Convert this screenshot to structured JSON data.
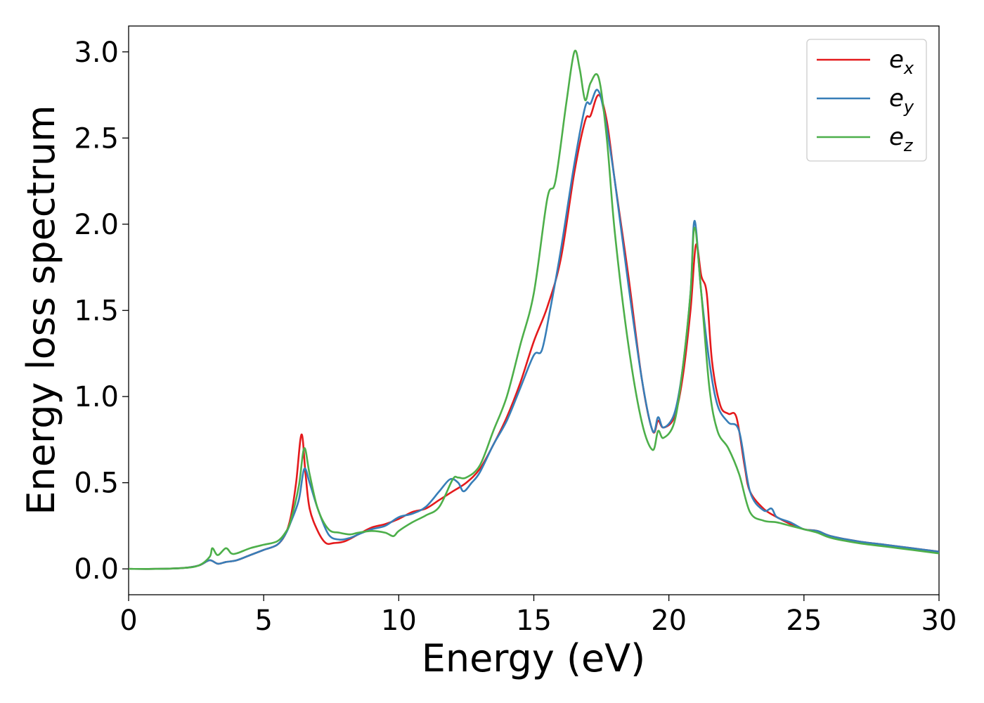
{
  "chart_data": {
    "type": "line",
    "title": "",
    "xlabel": "Energy (eV)",
    "ylabel": "Energy loss spectrum",
    "xlim": [
      0,
      30
    ],
    "ylim": [
      -0.15,
      3.15
    ],
    "xticks": [
      0,
      5,
      10,
      15,
      20,
      25,
      30
    ],
    "xtick_labels": [
      "0",
      "5",
      "10",
      "15",
      "20",
      "25",
      "30"
    ],
    "yticks": [
      0.0,
      0.5,
      1.0,
      1.5,
      2.0,
      2.5,
      3.0
    ],
    "ytick_labels": [
      "0.0",
      "0.5",
      "1.0",
      "1.5",
      "2.0",
      "2.5",
      "3.0"
    ],
    "grid": false,
    "legend_position": "top-right",
    "series": [
      {
        "name": "e_x",
        "legend_base": "e",
        "legend_sub": "x",
        "color": "#e41a1c",
        "points": [
          [
            0,
            0
          ],
          [
            1,
            0
          ],
          [
            2,
            0.005
          ],
          [
            2.6,
            0.02
          ],
          [
            3.0,
            0.05
          ],
          [
            3.3,
            0.03
          ],
          [
            3.6,
            0.04
          ],
          [
            4.0,
            0.05
          ],
          [
            4.5,
            0.08
          ],
          [
            5.0,
            0.11
          ],
          [
            5.5,
            0.14
          ],
          [
            5.8,
            0.2
          ],
          [
            6.0,
            0.3
          ],
          [
            6.2,
            0.5
          ],
          [
            6.4,
            0.78
          ],
          [
            6.55,
            0.55
          ],
          [
            6.7,
            0.35
          ],
          [
            7.0,
            0.22
          ],
          [
            7.3,
            0.15
          ],
          [
            7.6,
            0.15
          ],
          [
            8.0,
            0.16
          ],
          [
            8.5,
            0.2
          ],
          [
            9.0,
            0.24
          ],
          [
            9.5,
            0.26
          ],
          [
            10.0,
            0.29
          ],
          [
            10.5,
            0.33
          ],
          [
            11.0,
            0.35
          ],
          [
            11.5,
            0.4
          ],
          [
            12.0,
            0.45
          ],
          [
            12.5,
            0.5
          ],
          [
            13.0,
            0.58
          ],
          [
            13.5,
            0.72
          ],
          [
            14.0,
            0.88
          ],
          [
            14.5,
            1.08
          ],
          [
            15.0,
            1.32
          ],
          [
            15.5,
            1.52
          ],
          [
            16.0,
            1.8
          ],
          [
            16.5,
            2.3
          ],
          [
            16.9,
            2.6
          ],
          [
            17.1,
            2.63
          ],
          [
            17.4,
            2.75
          ],
          [
            17.7,
            2.6
          ],
          [
            18.0,
            2.25
          ],
          [
            18.5,
            1.7
          ],
          [
            19.0,
            1.1
          ],
          [
            19.4,
            0.8
          ],
          [
            19.6,
            0.86
          ],
          [
            19.8,
            0.82
          ],
          [
            20.2,
            0.88
          ],
          [
            20.5,
            1.1
          ],
          [
            20.8,
            1.5
          ],
          [
            21.0,
            1.88
          ],
          [
            21.2,
            1.7
          ],
          [
            21.4,
            1.6
          ],
          [
            21.6,
            1.2
          ],
          [
            21.9,
            0.95
          ],
          [
            22.2,
            0.9
          ],
          [
            22.5,
            0.88
          ],
          [
            22.8,
            0.6
          ],
          [
            23.0,
            0.45
          ],
          [
            23.5,
            0.35
          ],
          [
            24.0,
            0.3
          ],
          [
            24.5,
            0.26
          ],
          [
            25.0,
            0.23
          ],
          [
            25.5,
            0.22
          ],
          [
            26.0,
            0.19
          ],
          [
            27.0,
            0.16
          ],
          [
            28.0,
            0.14
          ],
          [
            29.0,
            0.12
          ],
          [
            30.0,
            0.1
          ]
        ]
      },
      {
        "name": "e_y",
        "legend_base": "e",
        "legend_sub": "y",
        "color": "#377eb8",
        "points": [
          [
            0,
            0
          ],
          [
            1,
            0
          ],
          [
            2,
            0.005
          ],
          [
            2.6,
            0.02
          ],
          [
            3.0,
            0.05
          ],
          [
            3.3,
            0.03
          ],
          [
            3.6,
            0.04
          ],
          [
            4.0,
            0.05
          ],
          [
            4.5,
            0.08
          ],
          [
            5.0,
            0.11
          ],
          [
            5.5,
            0.14
          ],
          [
            5.8,
            0.2
          ],
          [
            6.0,
            0.27
          ],
          [
            6.3,
            0.4
          ],
          [
            6.5,
            0.58
          ],
          [
            6.7,
            0.5
          ],
          [
            7.0,
            0.35
          ],
          [
            7.4,
            0.2
          ],
          [
            7.8,
            0.17
          ],
          [
            8.2,
            0.18
          ],
          [
            8.5,
            0.2
          ],
          [
            9.0,
            0.23
          ],
          [
            9.5,
            0.25
          ],
          [
            10.0,
            0.3
          ],
          [
            10.5,
            0.32
          ],
          [
            11.0,
            0.36
          ],
          [
            11.5,
            0.45
          ],
          [
            11.9,
            0.52
          ],
          [
            12.2,
            0.5
          ],
          [
            12.4,
            0.45
          ],
          [
            12.7,
            0.5
          ],
          [
            13.0,
            0.56
          ],
          [
            13.5,
            0.72
          ],
          [
            14.0,
            0.86
          ],
          [
            14.5,
            1.05
          ],
          [
            15.0,
            1.24
          ],
          [
            15.3,
            1.27
          ],
          [
            15.6,
            1.5
          ],
          [
            16.0,
            1.85
          ],
          [
            16.5,
            2.35
          ],
          [
            16.9,
            2.68
          ],
          [
            17.1,
            2.7
          ],
          [
            17.35,
            2.78
          ],
          [
            17.6,
            2.65
          ],
          [
            18.0,
            2.25
          ],
          [
            18.5,
            1.65
          ],
          [
            19.0,
            1.1
          ],
          [
            19.4,
            0.8
          ],
          [
            19.6,
            0.88
          ],
          [
            19.8,
            0.82
          ],
          [
            20.2,
            0.9
          ],
          [
            20.5,
            1.15
          ],
          [
            20.8,
            1.6
          ],
          [
            20.95,
            2.02
          ],
          [
            21.2,
            1.6
          ],
          [
            21.5,
            1.2
          ],
          [
            21.8,
            0.95
          ],
          [
            22.2,
            0.85
          ],
          [
            22.6,
            0.8
          ],
          [
            23.0,
            0.45
          ],
          [
            23.5,
            0.34
          ],
          [
            23.8,
            0.35
          ],
          [
            24.0,
            0.3
          ],
          [
            24.5,
            0.27
          ],
          [
            25.0,
            0.23
          ],
          [
            25.5,
            0.22
          ],
          [
            26.0,
            0.19
          ],
          [
            27.0,
            0.16
          ],
          [
            28.0,
            0.14
          ],
          [
            29.0,
            0.12
          ],
          [
            30.0,
            0.1
          ]
        ]
      },
      {
        "name": "e_z",
        "legend_base": "e",
        "legend_sub": "z",
        "color": "#4daf4a",
        "points": [
          [
            0,
            0
          ],
          [
            1,
            0
          ],
          [
            2,
            0.005
          ],
          [
            2.6,
            0.02
          ],
          [
            3.0,
            0.07
          ],
          [
            3.1,
            0.12
          ],
          [
            3.3,
            0.08
          ],
          [
            3.6,
            0.12
          ],
          [
            3.8,
            0.09
          ],
          [
            4.0,
            0.09
          ],
          [
            4.5,
            0.12
          ],
          [
            5.0,
            0.14
          ],
          [
            5.5,
            0.16
          ],
          [
            5.8,
            0.21
          ],
          [
            6.0,
            0.28
          ],
          [
            6.3,
            0.48
          ],
          [
            6.5,
            0.7
          ],
          [
            6.7,
            0.55
          ],
          [
            7.0,
            0.35
          ],
          [
            7.4,
            0.23
          ],
          [
            7.8,
            0.21
          ],
          [
            8.2,
            0.2
          ],
          [
            8.5,
            0.21
          ],
          [
            9.0,
            0.22
          ],
          [
            9.5,
            0.21
          ],
          [
            9.8,
            0.19
          ],
          [
            10.0,
            0.22
          ],
          [
            10.5,
            0.27
          ],
          [
            11.0,
            0.31
          ],
          [
            11.5,
            0.36
          ],
          [
            12.0,
            0.52
          ],
          [
            12.2,
            0.53
          ],
          [
            12.5,
            0.53
          ],
          [
            13.0,
            0.6
          ],
          [
            13.5,
            0.8
          ],
          [
            14.0,
            1.0
          ],
          [
            14.5,
            1.3
          ],
          [
            15.0,
            1.6
          ],
          [
            15.5,
            2.15
          ],
          [
            15.8,
            2.25
          ],
          [
            16.2,
            2.7
          ],
          [
            16.5,
            3.0
          ],
          [
            16.7,
            2.9
          ],
          [
            16.9,
            2.72
          ],
          [
            17.1,
            2.82
          ],
          [
            17.4,
            2.85
          ],
          [
            17.7,
            2.5
          ],
          [
            18.0,
            1.95
          ],
          [
            18.5,
            1.3
          ],
          [
            19.0,
            0.85
          ],
          [
            19.4,
            0.69
          ],
          [
            19.6,
            0.8
          ],
          [
            19.8,
            0.76
          ],
          [
            20.2,
            0.85
          ],
          [
            20.5,
            1.15
          ],
          [
            20.8,
            1.6
          ],
          [
            20.95,
            1.98
          ],
          [
            21.2,
            1.6
          ],
          [
            21.5,
            1.05
          ],
          [
            21.8,
            0.8
          ],
          [
            22.2,
            0.7
          ],
          [
            22.6,
            0.55
          ],
          [
            23.0,
            0.33
          ],
          [
            23.5,
            0.28
          ],
          [
            24.0,
            0.27
          ],
          [
            24.5,
            0.25
          ],
          [
            25.0,
            0.23
          ],
          [
            25.5,
            0.21
          ],
          [
            26.0,
            0.18
          ],
          [
            27.0,
            0.15
          ],
          [
            28.0,
            0.13
          ],
          [
            29.0,
            0.11
          ],
          [
            30.0,
            0.09
          ]
        ]
      }
    ]
  }
}
